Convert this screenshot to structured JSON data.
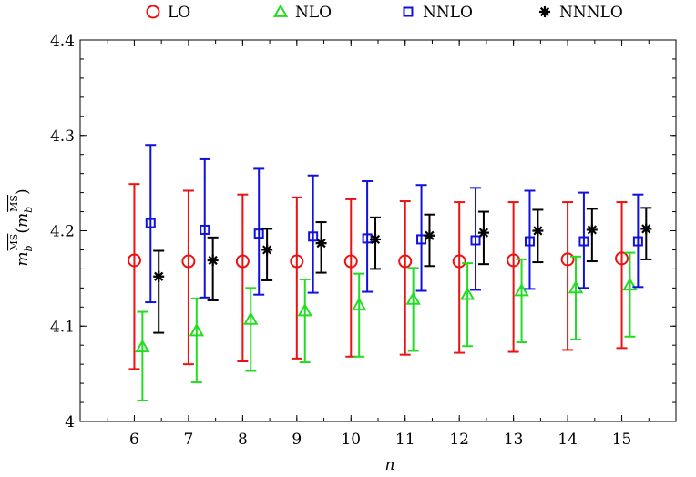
{
  "chart_data": {
    "type": "scatter",
    "xlabel": "n",
    "ylabel": {
      "base": "m",
      "sub": "b",
      "sup": "MS",
      "arg_base": "m",
      "arg_sub": "b",
      "arg_sup": "MS"
    },
    "xlim": [
      5,
      16
    ],
    "ylim": [
      4.0,
      4.4
    ],
    "x_ticks": [
      "6",
      "7",
      "8",
      "9",
      "10",
      "11",
      "12",
      "13",
      "14",
      "15"
    ],
    "y_ticks": [
      "4",
      "4.1",
      "4.2",
      "4.3",
      "4.4"
    ],
    "legend_position": "top",
    "series": [
      {
        "name": "LO",
        "marker": "circle",
        "color": "#ee1111",
        "offset": 0,
        "x": [
          6,
          7,
          8,
          9,
          10,
          11,
          12,
          13,
          14,
          15
        ],
        "y": [
          4.169,
          4.168,
          4.168,
          4.168,
          4.168,
          4.168,
          4.168,
          4.169,
          4.17,
          4.171
        ],
        "lo": [
          4.055,
          4.06,
          4.063,
          4.066,
          4.068,
          4.07,
          4.072,
          4.073,
          4.075,
          4.077
        ],
        "hi": [
          4.249,
          4.242,
          4.238,
          4.235,
          4.233,
          4.231,
          4.23,
          4.23,
          4.23,
          4.23
        ]
      },
      {
        "name": "NLO",
        "marker": "triangle",
        "color": "#22dd22",
        "offset": 0.15,
        "x": [
          6,
          7,
          8,
          9,
          10,
          11,
          12,
          13,
          14,
          15
        ],
        "y": [
          4.078,
          4.095,
          4.107,
          4.116,
          4.122,
          4.128,
          4.133,
          4.137,
          4.14,
          4.143
        ],
        "lo": [
          4.022,
          4.041,
          4.053,
          4.062,
          4.068,
          4.074,
          4.079,
          4.083,
          4.086,
          4.089
        ],
        "hi": [
          4.115,
          4.129,
          4.14,
          4.149,
          4.155,
          4.161,
          4.166,
          4.17,
          4.173,
          4.177
        ]
      },
      {
        "name": "NNLO",
        "marker": "square",
        "color": "#1111dd",
        "offset": 0.3,
        "x": [
          6,
          7,
          8,
          9,
          10,
          11,
          12,
          13,
          14,
          15
        ],
        "y": [
          4.208,
          4.201,
          4.197,
          4.194,
          4.192,
          4.191,
          4.19,
          4.189,
          4.189,
          4.189
        ],
        "lo": [
          4.125,
          4.13,
          4.133,
          4.135,
          4.136,
          4.137,
          4.138,
          4.139,
          4.14,
          4.141
        ],
        "hi": [
          4.29,
          4.275,
          4.265,
          4.258,
          4.252,
          4.248,
          4.245,
          4.242,
          4.24,
          4.238
        ]
      },
      {
        "name": "NNNLO",
        "marker": "star",
        "color": "#000000",
        "offset": 0.45,
        "x": [
          6,
          7,
          8,
          9,
          10,
          11,
          12,
          13,
          14,
          15
        ],
        "y": [
          4.152,
          4.169,
          4.18,
          4.187,
          4.191,
          4.195,
          4.198,
          4.2,
          4.201,
          4.202
        ],
        "lo": [
          4.093,
          4.127,
          4.148,
          4.156,
          4.16,
          4.163,
          4.165,
          4.167,
          4.168,
          4.17
        ],
        "hi": [
          4.179,
          4.193,
          4.202,
          4.209,
          4.214,
          4.217,
          4.22,
          4.222,
          4.223,
          4.224
        ]
      }
    ]
  }
}
